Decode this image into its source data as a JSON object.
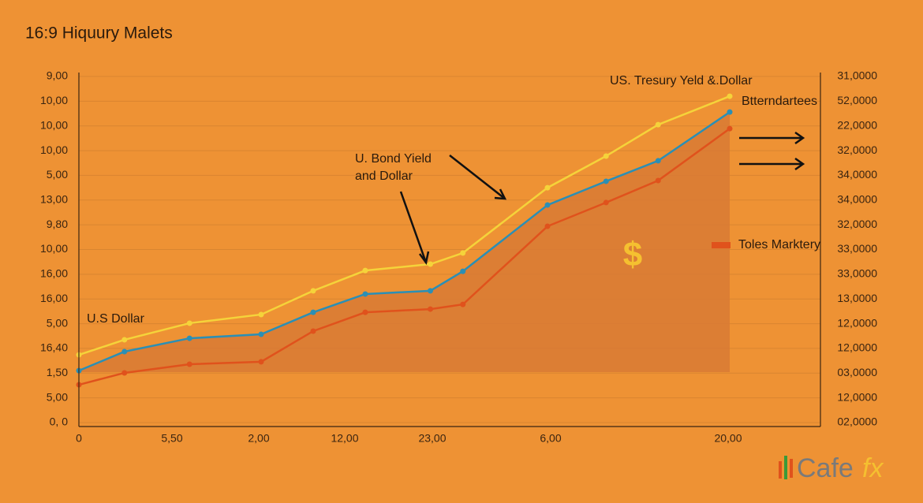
{
  "chart_data": {
    "type": "line",
    "title": "16:9 Hiquury Malets",
    "left_tick_labels": [
      "9,00",
      "10,00",
      "10,00",
      "10,00",
      "5,00",
      "13,00",
      "9,80",
      "10,00",
      "16,00",
      "16,00",
      "5,00",
      "16,40",
      "1,50",
      "5,00",
      "0, 0"
    ],
    "right_tick_labels": [
      "31,0000",
      "52,0000",
      "22,0000",
      "32,0000",
      "34,0000",
      "34,0000",
      "32,0000",
      "33,0000",
      "33,0000",
      "13,0000",
      "12,0000",
      "12,0000",
      "03,0000",
      "12,0000",
      "02,0000"
    ],
    "x_tick_labels": [
      "0",
      "5,50",
      "2,00",
      "12,00",
      "23,00",
      "6,00",
      "20,00"
    ],
    "xlim": [
      0,
      100
    ],
    "ylim": [
      0,
      14
    ],
    "x": [
      0,
      7,
      17,
      28,
      36,
      44,
      54,
      59,
      72,
      81,
      89,
      100
    ],
    "series": [
      {
        "color": "#f5d33a",
        "values": [
          2.74,
          3.35,
          4.02,
          4.37,
          5.33,
          6.15,
          6.41,
          6.86,
          9.5,
          10.78,
          12.05,
          13.2
        ]
      },
      {
        "color": "#2b8fb5",
        "values": [
          2.1,
          2.87,
          3.41,
          3.57,
          4.46,
          5.2,
          5.33,
          6.12,
          8.8,
          9.76,
          10.59,
          12.56
        ]
      },
      {
        "color": "#e0521c",
        "values": [
          1.53,
          2.01,
          2.36,
          2.46,
          3.7,
          4.46,
          4.59,
          4.78,
          7.94,
          8.9,
          9.79,
          11.89
        ]
      }
    ],
    "area_color": "#d87a35",
    "annotations": [
      "US. Tresury Yeld &.Dollar",
      "Btterndartees",
      "U. Bond Yield",
      "and Dollar",
      "U.S Dollar",
      "Toles Marktery",
      "$"
    ],
    "logo": [
      "Cafe",
      "fx"
    ]
  }
}
